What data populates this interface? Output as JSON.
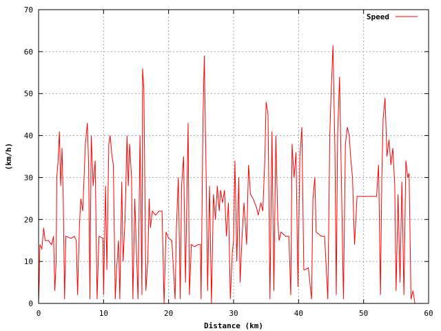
{
  "chart_data": {
    "type": "line",
    "xlabel": "Distance (km)",
    "ylabel": "(km/h)",
    "xlim": [
      0,
      60
    ],
    "ylim": [
      0,
      70
    ],
    "x_ticks": [
      "0",
      "10",
      "20",
      "30",
      "40",
      "50",
      "60"
    ],
    "y_ticks": [
      "0",
      "10",
      "20",
      "30",
      "40",
      "50",
      "60",
      "70"
    ],
    "grid": true,
    "legend_position": "top-right",
    "series": [
      {
        "name": "Speed",
        "color": "#ff0000",
        "points": [
          [
            0.0,
            0
          ],
          [
            0.1,
            5
          ],
          [
            0.2,
            14
          ],
          [
            0.5,
            13
          ],
          [
            0.8,
            18
          ],
          [
            1.0,
            15
          ],
          [
            1.5,
            15
          ],
          [
            2.0,
            14
          ],
          [
            2.3,
            16
          ],
          [
            2.5,
            3
          ],
          [
            2.7,
            10
          ],
          [
            2.8,
            30
          ],
          [
            3.0,
            34
          ],
          [
            3.2,
            41
          ],
          [
            3.4,
            28
          ],
          [
            3.6,
            37
          ],
          [
            3.8,
            25
          ],
          [
            4.0,
            1
          ],
          [
            4.2,
            16
          ],
          [
            5.0,
            15.5
          ],
          [
            5.5,
            16
          ],
          [
            5.8,
            15
          ],
          [
            6.0,
            2
          ],
          [
            6.3,
            19
          ],
          [
            6.5,
            25
          ],
          [
            6.8,
            22
          ],
          [
            7.2,
            38
          ],
          [
            7.5,
            43
          ],
          [
            7.7,
            33
          ],
          [
            7.9,
            1
          ],
          [
            8.1,
            40
          ],
          [
            8.4,
            28
          ],
          [
            8.7,
            34
          ],
          [
            9.0,
            1
          ],
          [
            9.3,
            16
          ],
          [
            9.9,
            15.5
          ],
          [
            10.0,
            2
          ],
          [
            10.3,
            28
          ],
          [
            10.5,
            8
          ],
          [
            10.8,
            38
          ],
          [
            11.0,
            40
          ],
          [
            11.3,
            35
          ],
          [
            11.5,
            33
          ],
          [
            11.8,
            1
          ],
          [
            12.0,
            8
          ],
          [
            12.3,
            15
          ],
          [
            12.5,
            1
          ],
          [
            12.8,
            29
          ],
          [
            13.0,
            10
          ],
          [
            13.3,
            20
          ],
          [
            13.6,
            40
          ],
          [
            13.8,
            28
          ],
          [
            14.0,
            38
          ],
          [
            14.3,
            30
          ],
          [
            14.5,
            1
          ],
          [
            14.8,
            25
          ],
          [
            15.0,
            15
          ],
          [
            15.3,
            1
          ],
          [
            15.6,
            40
          ],
          [
            15.9,
            2
          ],
          [
            16.0,
            56
          ],
          [
            16.2,
            51
          ],
          [
            16.5,
            3
          ],
          [
            16.8,
            10
          ],
          [
            17.0,
            25
          ],
          [
            17.2,
            18
          ],
          [
            17.5,
            22
          ],
          [
            18.0,
            21
          ],
          [
            18.5,
            22
          ],
          [
            19.0,
            22
          ],
          [
            19.3,
            0
          ],
          [
            19.6,
            17
          ],
          [
            20.0,
            15.5
          ],
          [
            20.5,
            15
          ],
          [
            21.0,
            1
          ],
          [
            21.2,
            18
          ],
          [
            21.5,
            30
          ],
          [
            21.8,
            1
          ],
          [
            22.0,
            28
          ],
          [
            22.3,
            35
          ],
          [
            22.6,
            5
          ],
          [
            23.0,
            43
          ],
          [
            23.2,
            2
          ],
          [
            23.5,
            14
          ],
          [
            24.0,
            13.5
          ],
          [
            24.5,
            14
          ],
          [
            24.9,
            14
          ],
          [
            25.0,
            1
          ],
          [
            25.3,
            45
          ],
          [
            25.5,
            59
          ],
          [
            25.8,
            28
          ],
          [
            26.0,
            3
          ],
          [
            26.3,
            28
          ],
          [
            26.6,
            0
          ],
          [
            26.9,
            26
          ],
          [
            27.2,
            20
          ],
          [
            27.5,
            28
          ],
          [
            27.8,
            22
          ],
          [
            28.0,
            27
          ],
          [
            28.3,
            24
          ],
          [
            28.6,
            27
          ],
          [
            28.9,
            16
          ],
          [
            29.2,
            24
          ],
          [
            29.5,
            1
          ],
          [
            29.8,
            12
          ],
          [
            30.0,
            15
          ],
          [
            30.2,
            34
          ],
          [
            30.5,
            10
          ],
          [
            30.8,
            30
          ],
          [
            31.0,
            5
          ],
          [
            31.3,
            16
          ],
          [
            31.6,
            24
          ],
          [
            32.0,
            14
          ],
          [
            32.3,
            33
          ],
          [
            32.6,
            26
          ],
          [
            33.0,
            25
          ],
          [
            33.5,
            23
          ],
          [
            33.8,
            21
          ],
          [
            34.2,
            24
          ],
          [
            34.5,
            22
          ],
          [
            34.8,
            34
          ],
          [
            35.0,
            48
          ],
          [
            35.3,
            45
          ],
          [
            35.6,
            1
          ],
          [
            35.9,
            41
          ],
          [
            36.2,
            3
          ],
          [
            36.5,
            40
          ],
          [
            36.8,
            20
          ],
          [
            37.0,
            15
          ],
          [
            37.3,
            17
          ],
          [
            38.0,
            16
          ],
          [
            38.5,
            16
          ],
          [
            38.8,
            2
          ],
          [
            39.0,
            38
          ],
          [
            39.3,
            30
          ],
          [
            39.6,
            36
          ],
          [
            39.9,
            4
          ],
          [
            40.2,
            35
          ],
          [
            40.5,
            42
          ],
          [
            40.8,
            8
          ],
          [
            41.0,
            8
          ],
          [
            41.5,
            8.5
          ],
          [
            42.0,
            1
          ],
          [
            42.2,
            25
          ],
          [
            42.5,
            30
          ],
          [
            42.7,
            17
          ],
          [
            43.5,
            16
          ],
          [
            44.0,
            16
          ],
          [
            44.5,
            1
          ],
          [
            44.8,
            40
          ],
          [
            45.0,
            50
          ],
          [
            45.3,
            61.5
          ],
          [
            45.6,
            35
          ],
          [
            45.8,
            2
          ],
          [
            46.0,
            40
          ],
          [
            46.3,
            54
          ],
          [
            46.6,
            28
          ],
          [
            46.9,
            1
          ],
          [
            47.2,
            38
          ],
          [
            47.5,
            42
          ],
          [
            47.8,
            40
          ],
          [
            48.0,
            35
          ],
          [
            48.3,
            30
          ],
          [
            48.6,
            14
          ],
          [
            49.0,
            25.5
          ],
          [
            50.0,
            25.5
          ],
          [
            51.0,
            25.5
          ],
          [
            52.0,
            25.5
          ],
          [
            52.3,
            33
          ],
          [
            52.6,
            2
          ],
          [
            52.8,
            30
          ],
          [
            53.0,
            44
          ],
          [
            53.3,
            49
          ],
          [
            53.6,
            35
          ],
          [
            53.9,
            39
          ],
          [
            54.2,
            33
          ],
          [
            54.5,
            37
          ],
          [
            54.8,
            28
          ],
          [
            55.0,
            3
          ],
          [
            55.3,
            26
          ],
          [
            55.6,
            5
          ],
          [
            55.9,
            29
          ],
          [
            56.2,
            2
          ],
          [
            56.5,
            34
          ],
          [
            56.8,
            30
          ],
          [
            57.0,
            31
          ],
          [
            57.3,
            1
          ],
          [
            57.6,
            3
          ],
          [
            57.9,
            0
          ]
        ]
      }
    ]
  }
}
